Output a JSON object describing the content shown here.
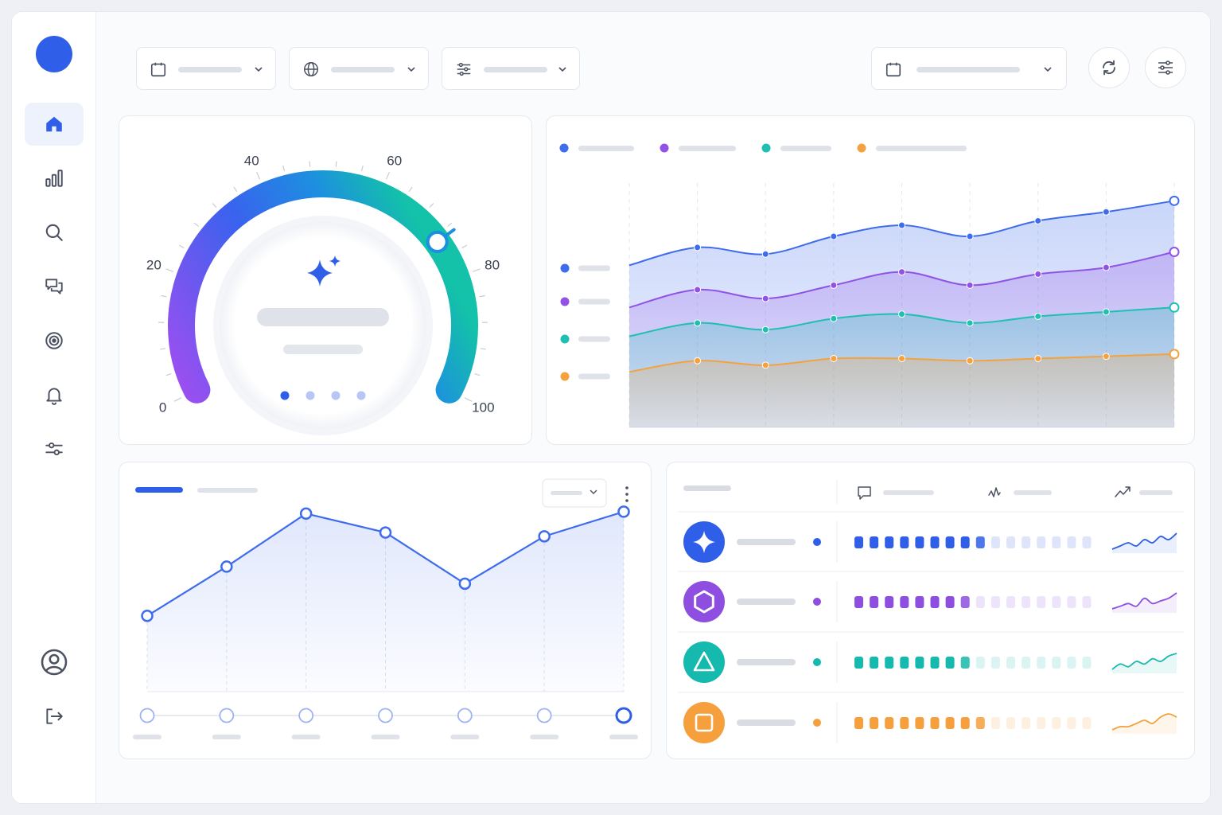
{
  "gauge": {
    "ticks": [
      {
        "label": "0",
        "value": 0
      },
      {
        "label": "20",
        "value": 20
      },
      {
        "label": "40",
        "value": 40
      },
      {
        "label": "60",
        "value": 60
      },
      {
        "label": "80",
        "value": 80
      },
      {
        "label": "100",
        "value": 100
      }
    ],
    "value": 73,
    "gradient_colors": [
      "#9b4ff0",
      "#2f5fe8",
      "#13b7a8"
    ],
    "center_icon": "sparkle-icon",
    "page_dots": 4,
    "active_dot": 0
  },
  "nav": [
    "home-icon",
    "bar-chart-icon",
    "search-icon",
    "chat-icon",
    "target-icon",
    "bell-icon",
    "sliders-icon"
  ],
  "nav_bottom": [
    "user-icon",
    "logout-icon"
  ],
  "colors": {
    "accent": "#2f5fe8",
    "purple": "#8e4ee0",
    "teal": "#15b9ad",
    "orange": "#f5a03c"
  },
  "chart_data": [
    {
      "type": "area",
      "x": [
        1,
        2,
        3,
        4,
        5,
        6,
        7,
        8,
        9
      ],
      "series": [
        {
          "values": [
            73,
            81,
            78,
            86,
            91,
            86,
            93,
            97,
            102
          ],
          "color": "#3f6cec"
        },
        {
          "values": [
            54,
            62,
            58,
            64,
            70,
            64,
            69,
            72,
            79
          ],
          "color": "#9152e6"
        },
        {
          "values": [
            41,
            47,
            44,
            49,
            51,
            47,
            50,
            52,
            54
          ],
          "color": "#1fbfb2"
        },
        {
          "values": [
            25,
            30,
            28,
            31,
            31,
            30,
            31,
            32,
            33
          ],
          "color": "#f4a23f"
        }
      ],
      "ylim": [
        0,
        110
      ],
      "grid": true,
      "legend": "top"
    },
    {
      "type": "line",
      "x": [
        1,
        2,
        3,
        4,
        5,
        6,
        7
      ],
      "values": [
        40,
        66,
        94,
        84,
        57,
        82,
        95
      ],
      "ylim": [
        0,
        100
      ],
      "color": "#3f6cec",
      "active_index": 6
    }
  ],
  "table": {
    "header_icons": [
      "comment-icon",
      "activity-icon",
      "trending-up-icon"
    ],
    "rows": [
      {
        "icon": "sparkle-icon",
        "color": "#2f5fe8",
        "progress": 9,
        "spark": [
          3,
          4,
          5,
          4,
          6,
          5,
          7,
          6,
          8
        ]
      },
      {
        "icon": "hexagon-icon",
        "color": "#8e4ee0",
        "progress": 8,
        "spark": [
          2,
          3,
          4,
          3,
          6,
          4,
          5,
          6,
          8
        ]
      },
      {
        "icon": "triangle-icon",
        "color": "#15b9ad",
        "progress": 8,
        "spark": [
          2,
          4,
          3,
          5,
          4,
          6,
          5,
          7,
          8
        ]
      },
      {
        "icon": "square-icon",
        "color": "#f5a03c",
        "progress": 9,
        "spark": [
          2,
          3,
          3,
          4,
          5,
          4,
          6,
          7,
          6
        ]
      }
    ],
    "segments_total": 16
  }
}
